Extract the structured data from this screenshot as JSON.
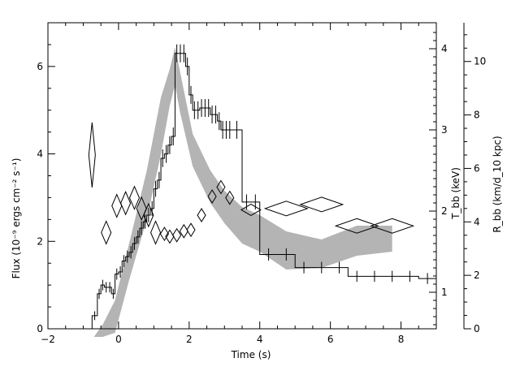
{
  "chart_data": {
    "type": "line",
    "xlabel": "Time (s)",
    "ylabel_left": "Flux (10⁻⁹ ergs cm⁻² s⁻¹)",
    "ylabel_right_inner": "T_bb (keV)",
    "ylabel_right_outer": "R_bb (km/d_10 kpc)",
    "xlim": [
      -2,
      9
    ],
    "ylim_flux": [
      0,
      7
    ],
    "ylim_tbb": [
      0.55,
      4.32
    ],
    "ylim_rbb": [
      0,
      11.45
    ],
    "x_ticks": [
      "−2",
      "0",
      "2",
      "4",
      "6",
      "8"
    ],
    "flux_ticks": [
      "0",
      "2",
      "4",
      "6"
    ],
    "tbb_ticks": [
      "1",
      "2",
      "3",
      "4"
    ],
    "rbb_ticks": [
      "0",
      "2",
      "4",
      "6",
      "8",
      "10"
    ],
    "series": [
      {
        "name": "",
        "kind": "flux-step",
        "x": [
          -0.75,
          -0.6,
          -0.5,
          -0.4,
          -0.3,
          -0.2,
          -0.1,
          0.0,
          0.1,
          0.2,
          0.3,
          0.4,
          0.5,
          0.6,
          0.7,
          0.8,
          0.9,
          1.0,
          1.1,
          1.2,
          1.3,
          1.4,
          1.5,
          1.6,
          1.7,
          1.8,
          1.9,
          2.0,
          2.1,
          2.2,
          2.3,
          2.4,
          2.5,
          2.6,
          2.7,
          2.8,
          2.9,
          3.0,
          3.1,
          3.2,
          3.5,
          3.75,
          4.0,
          4.5,
          5.0,
          5.5,
          6.0,
          6.5,
          7.0,
          7.5,
          8.0,
          8.5,
          9.0
        ],
        "y": [
          0.3,
          0.8,
          1.0,
          0.95,
          0.95,
          0.8,
          1.25,
          1.3,
          1.55,
          1.65,
          1.75,
          1.95,
          2.1,
          2.3,
          2.45,
          2.6,
          2.75,
          3.2,
          3.4,
          3.9,
          4.0,
          4.2,
          4.4,
          6.3,
          6.3,
          6.3,
          6.0,
          5.35,
          5.0,
          5.0,
          5.05,
          5.05,
          5.05,
          4.9,
          4.9,
          4.75,
          4.55,
          4.55,
          4.55,
          4.55,
          2.9,
          2.9,
          1.7,
          1.7,
          1.4,
          1.4,
          1.4,
          1.2,
          1.2,
          1.2,
          1.2,
          1.15,
          1.15
        ]
      },
      {
        "name": "",
        "kind": "temperature-band",
        "x": [
          -0.7,
          -0.45,
          -0.1,
          0.3,
          0.8,
          1.2,
          1.45,
          1.6,
          1.75,
          2.1,
          2.6,
          3.0,
          3.5,
          4.0,
          4.75,
          5.75,
          6.75,
          7.75
        ],
        "upper": [
          0.45,
          0.6,
          0.9,
          1.6,
          2.5,
          3.4,
          3.75,
          4.02,
          3.7,
          2.95,
          2.5,
          2.25,
          2.05,
          1.95,
          1.75,
          1.65,
          1.82,
          1.82
        ],
        "lower": [
          0.45,
          0.45,
          0.5,
          1.15,
          1.9,
          2.7,
          3.3,
          3.55,
          3.2,
          2.55,
          2.1,
          1.85,
          1.6,
          1.5,
          1.28,
          1.3,
          1.45,
          1.5
        ]
      },
      {
        "name": "",
        "kind": "radius-diamonds",
        "points": [
          {
            "x": -0.75,
            "y": 6.5
          },
          {
            "x": -0.35,
            "y": 3.6
          },
          {
            "x": -0.05,
            "y": 4.6
          },
          {
            "x": 0.2,
            "y": 4.7
          },
          {
            "x": 0.45,
            "y": 4.9
          },
          {
            "x": 0.65,
            "y": 4.5
          },
          {
            "x": 0.85,
            "y": 4.25
          },
          {
            "x": 1.05,
            "y": 3.6
          },
          {
            "x": 1.3,
            "y": 3.55
          },
          {
            "x": 1.45,
            "y": 3.45
          },
          {
            "x": 1.65,
            "y": 3.5
          },
          {
            "x": 1.85,
            "y": 3.65
          },
          {
            "x": 2.05,
            "y": 3.7
          },
          {
            "x": 2.35,
            "y": 4.25
          },
          {
            "x": 2.65,
            "y": 4.95
          },
          {
            "x": 2.9,
            "y": 5.3
          },
          {
            "x": 3.15,
            "y": 4.9
          },
          {
            "x": 3.75,
            "y": 4.45
          },
          {
            "x": 4.75,
            "y": 4.5
          },
          {
            "x": 5.75,
            "y": 4.65
          },
          {
            "x": 6.75,
            "y": 3.85
          },
          {
            "x": 7.75,
            "y": 3.85
          }
        ]
      }
    ]
  }
}
